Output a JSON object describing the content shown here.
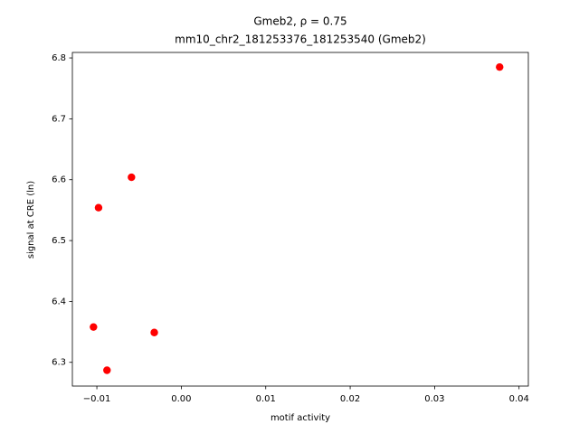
{
  "chart_data": {
    "type": "scatter",
    "title": "Gmeb2, ρ = 0.75",
    "subtitle": "mm10_chr2_181253376_181253540 (Gmeb2)",
    "x_label": "motif activity",
    "y_label": "signal at CRE (ln)",
    "color": "#ff0000",
    "x": [
      0.0377,
      -0.0059,
      -0.0098,
      -0.0104,
      -0.0032,
      -0.0088
    ],
    "values": [
      6.785,
      6.604,
      6.554,
      6.358,
      6.349,
      6.287
    ],
    "xlim": [
      -0.0129,
      0.0411
    ],
    "ylim": [
      6.261,
      6.809
    ],
    "xticks": [
      {
        "value": -0.01,
        "label": "−0.01"
      },
      {
        "value": 0,
        "label": "0.00"
      },
      0.01,
      0.02,
      0.03,
      0.04
    ],
    "yticks": [
      6.3,
      6.4,
      6.5,
      6.6,
      6.7,
      6.8
    ],
    "grid": false
  }
}
